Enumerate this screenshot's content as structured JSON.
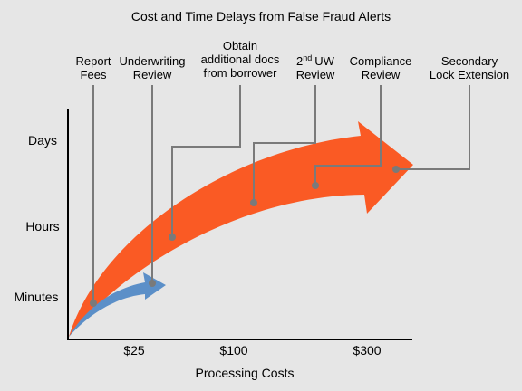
{
  "title": "Cost and Time Delays from False Fraud Alerts",
  "y_axis": {
    "labels": [
      "Days",
      "Hours",
      "Minutes"
    ]
  },
  "x_axis": {
    "labels": [
      "$25",
      "$100",
      "$300"
    ],
    "title": "Processing Costs"
  },
  "callouts": [
    {
      "lines": [
        "Report",
        "Fees"
      ]
    },
    {
      "lines": [
        "Underwriting",
        "Review"
      ]
    },
    {
      "lines": [
        "Obtain",
        "additional docs",
        "from borrower"
      ]
    },
    {
      "lines": [
        {
          "base": "2",
          "sup": "nd",
          "rest": "UW"
        },
        "Review"
      ]
    },
    {
      "lines": [
        "Compliance",
        "Review"
      ]
    },
    {
      "lines": [
        "Secondary",
        "Lock Extension"
      ]
    }
  ]
}
